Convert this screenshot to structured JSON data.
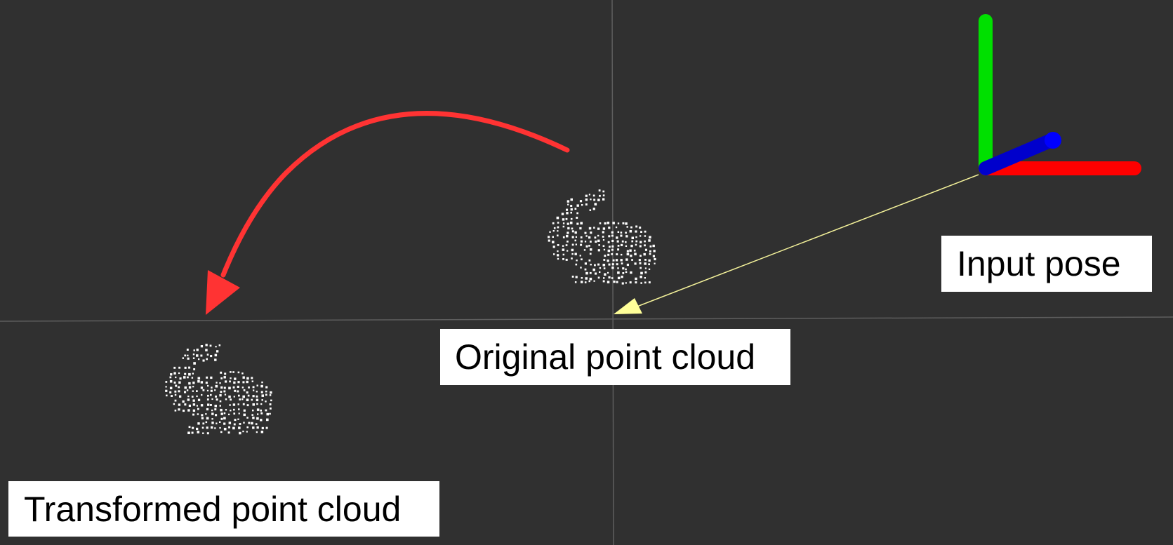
{
  "viewer": {
    "background_color": "#303030",
    "grid_color": "#5e5e5e"
  },
  "labels": {
    "input_pose": "Input pose",
    "original_cloud": "Original point cloud",
    "transformed_cloud": "Transformed point cloud"
  },
  "axes": {
    "x_color": "#ff0000",
    "y_color": "#00e000",
    "z_color": "#0000cc",
    "z_tip_color": "#0000ff"
  },
  "annotations": {
    "curved_arrow_color": "#ff3333",
    "pointer_line_color": "#f4f29a",
    "pointer_head_color": "#ffff99"
  },
  "point_cloud": {
    "model": "bunny",
    "point_color": "#ffffff"
  }
}
